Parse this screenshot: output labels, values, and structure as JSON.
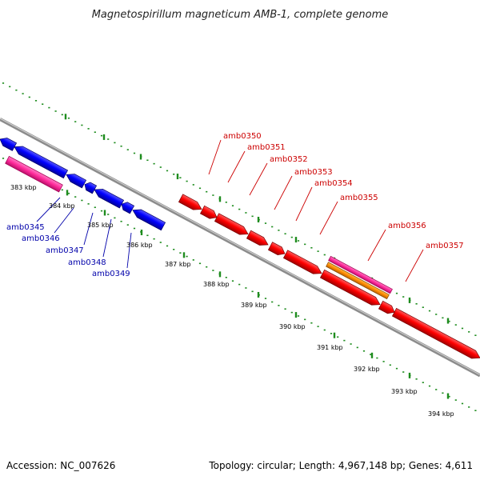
{
  "title": "Magnetospirillum magneticum AMB-1, complete genome",
  "footer": {
    "accession": "Accession: NC_007626",
    "topology": "Topology: circular; Length: 4,967,148 bp; Genes: 4,611"
  },
  "colors": {
    "forward_gene": "#ff0000",
    "reverse_gene": "#0000ff",
    "pink_feature": "#ff2a9a",
    "orange_feature": "#ff8c00",
    "forward_label": "#cc0000",
    "reverse_label": "#0000aa",
    "backbone": "#8c8c8c",
    "ticks": "#1e8c1e"
  },
  "scale_labels": [
    "383 kbp",
    "384 kbp",
    "385 kbp",
    "386 kbp",
    "387 kbp",
    "388 kbp",
    "389 kbp",
    "390 kbp",
    "391 kbp",
    "392 kbp",
    "393 kbp",
    "394 kbp"
  ],
  "reverse_genes": [
    "amb0345",
    "amb0346",
    "amb0347",
    "amb0348",
    "amb0349"
  ],
  "forward_genes": [
    "amb0350",
    "amb0351",
    "amb0352",
    "amb0353",
    "amb0354",
    "amb0355",
    "amb0356",
    "amb0357"
  ]
}
